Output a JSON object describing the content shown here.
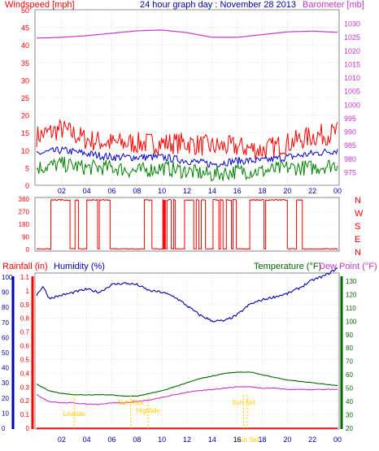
{
  "header": {
    "left_label": "Windspeed [mph]",
    "center_label": "24 hour graph day : November 28 2013",
    "right_label": "Barometer [mb]"
  },
  "colors": {
    "wind_speed": "#ff0000",
    "wind_avg": "#0000cc",
    "wind_base": "#008000",
    "barometer": "#cc33cc",
    "direction": "#ff0000",
    "rain": "#ff0000",
    "humidity": "#0000aa",
    "temperature": "#006600",
    "dewpoint": "#cc33cc",
    "sun_marker": "#ffcc00",
    "frame": "#888888",
    "grid": "#cccccc"
  },
  "chart_data": [
    {
      "type": "line",
      "title": "24 hour graph day : November 28 2013",
      "ylabel": "Windspeed [mph]",
      "y2label": "Barometer [mb]",
      "x_ticks": [
        "02",
        "04",
        "06",
        "08",
        "10",
        "12",
        "14",
        "16",
        "18",
        "20",
        "22",
        "00"
      ],
      "ylim": [
        0,
        50
      ],
      "y_ticks": [
        0,
        5,
        10,
        15,
        20,
        25,
        30,
        35,
        40,
        45,
        50
      ],
      "y2lim": [
        970,
        1035
      ],
      "y2_ticks": [
        975,
        980,
        985,
        990,
        995,
        1000,
        1005,
        1010,
        1015,
        1020,
        1025,
        1030
      ],
      "grid": true,
      "series": [
        {
          "name": "Windspeed gust",
          "x": [
            0,
            2,
            4,
            6,
            8,
            10,
            12,
            14,
            16,
            18,
            20,
            22,
            24
          ],
          "values": [
            14,
            16,
            13,
            12,
            12,
            12,
            12,
            11,
            11,
            10,
            12,
            14,
            15
          ]
        },
        {
          "name": "Windspeed avg",
          "x": [
            0,
            2,
            4,
            6,
            8,
            10,
            12,
            14,
            16,
            18,
            20,
            22,
            24
          ],
          "values": [
            9,
            10,
            9,
            8,
            8,
            8,
            7,
            6,
            7,
            7,
            8,
            9,
            10
          ]
        },
        {
          "name": "Windspeed min",
          "x": [
            0,
            2,
            4,
            6,
            8,
            10,
            12,
            14,
            16,
            18,
            20,
            22,
            24
          ],
          "values": [
            5,
            6,
            5,
            5,
            4,
            5,
            4,
            3,
            4,
            4,
            5,
            5,
            6
          ]
        },
        {
          "name": "Barometer",
          "x": [
            0,
            2,
            4,
            6,
            8,
            10,
            12,
            14,
            16,
            18,
            20,
            22,
            24
          ],
          "values": [
            1024.5,
            1024.8,
            1025.4,
            1026.3,
            1027.2,
            1027.5,
            1026.5,
            1024.8,
            1024.8,
            1025.8,
            1026.8,
            1027.1,
            1026.6
          ]
        }
      ]
    },
    {
      "type": "line",
      "ylabels_left": [
        "360",
        "270",
        "180",
        "90",
        "0"
      ],
      "ylabels_right": [
        "N",
        "W",
        "S",
        "E",
        "N"
      ],
      "ylim": [
        0,
        360
      ],
      "series": [
        {
          "name": "Wind direction",
          "x": [
            0,
            2,
            4,
            6,
            8,
            10,
            12,
            14,
            16,
            18,
            20,
            22,
            24
          ],
          "values": [
            350,
            355,
            345,
            0,
            355,
            350,
            5,
            350,
            355,
            350,
            355,
            0,
            5
          ]
        }
      ]
    },
    {
      "type": "line",
      "legend": [
        "Rainfall (in)",
        "Humidity (%)",
        "Temperature (°F)",
        "Dew Point (°F)"
      ],
      "x_ticks": [
        "02",
        "04",
        "06",
        "08",
        "10",
        "12",
        "14",
        "16",
        "18",
        "20",
        "22",
        "00"
      ],
      "y_left_outer_ticks": [
        0,
        10,
        20,
        30,
        40,
        50,
        60,
        70,
        80,
        90,
        100
      ],
      "y_left_inner_ticks": [
        "0",
        "0.1",
        "0.2",
        "0.3",
        "0.4",
        "0.5",
        "0.6",
        "0.7",
        "0.8",
        "0.9",
        "1",
        "1.1"
      ],
      "y_right_ticks": [
        20,
        30,
        40,
        50,
        60,
        70,
        80,
        90,
        100,
        110,
        120,
        130
      ],
      "humidity_ylim": [
        0,
        100
      ],
      "temp_ylim": [
        20,
        133
      ],
      "rain_ylim": [
        0,
        1.1
      ],
      "annotations": [
        {
          "label": "Lowtide",
          "x_hour": 3.0
        },
        {
          "label": "Sun Rise",
          "x_hour": 7.5
        },
        {
          "label": "Hightide",
          "x_hour": 8.9
        },
        {
          "label": "Sun Set",
          "x_hour": 16.5
        },
        {
          "label": "Sun Set",
          "x_hour": 16.8
        }
      ],
      "series": [
        {
          "name": "Humidity",
          "x": [
            0,
            0.5,
            1,
            2,
            3,
            4,
            5,
            6,
            7,
            8,
            9,
            10,
            11,
            12,
            13,
            14,
            15,
            16,
            17,
            18,
            19,
            20,
            21,
            22,
            23,
            24
          ],
          "values": [
            88,
            94,
            86,
            88,
            90,
            92,
            90,
            95,
            96,
            95,
            91,
            90,
            87,
            81,
            75,
            71,
            71,
            75,
            82,
            85,
            87,
            89,
            93,
            98,
            101,
            106
          ]
        },
        {
          "name": "Temperature",
          "x": [
            0,
            1,
            2,
            3,
            4,
            5,
            6,
            7,
            8,
            9,
            10,
            11,
            12,
            13,
            14,
            15,
            16,
            17,
            18,
            19,
            20,
            21,
            22,
            23,
            24
          ],
          "values": [
            53,
            48,
            46,
            45,
            45,
            45,
            45,
            44,
            44,
            46,
            48,
            51,
            54,
            57,
            59,
            61,
            62,
            62,
            60,
            58,
            56,
            55,
            54,
            53,
            52
          ]
        },
        {
          "name": "Dew Point",
          "x": [
            0,
            1,
            2,
            3,
            4,
            5,
            6,
            7,
            8,
            9,
            10,
            11,
            12,
            13,
            14,
            15,
            16,
            17,
            18,
            19,
            20,
            21,
            22,
            23,
            24
          ],
          "values": [
            45,
            40,
            39,
            39,
            38,
            38,
            39,
            39,
            40,
            41,
            43,
            45,
            47,
            48,
            49,
            50,
            51,
            51,
            50,
            50,
            49,
            49,
            49,
            49,
            49
          ]
        },
        {
          "name": "Rainfall",
          "x": [
            0,
            24
          ],
          "values": [
            0,
            0
          ]
        }
      ]
    }
  ]
}
